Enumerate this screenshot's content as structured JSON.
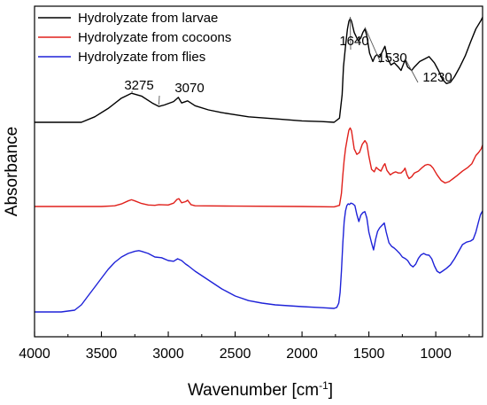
{
  "chart_data": {
    "type": "line",
    "xlabel": "Wavenumber [cm",
    "xlabel_sup": "-1",
    "xlabel_suffix": "]",
    "ylabel": "Absorbance",
    "xlim": [
      4000,
      650
    ],
    "x_reversed": true,
    "ylim": [
      0,
      1
    ],
    "y_tick_labels": false,
    "grid": false,
    "legend": "top-left",
    "xticks": [
      4000,
      3500,
      3000,
      2500,
      2000,
      1500,
      1000
    ],
    "xtick_labels": [
      "4000",
      "3500",
      "3000",
      "2500",
      "2000",
      "1500",
      "1000"
    ],
    "series": [
      {
        "name": "Hydrolyzate from larvae",
        "color": "#000000",
        "points": [
          [
            4000,
            0.72
          ],
          [
            3800,
            0.72
          ],
          [
            3650,
            0.72
          ],
          [
            3550,
            0.728
          ],
          [
            3450,
            0.74
          ],
          [
            3350,
            0.755
          ],
          [
            3275,
            0.762
          ],
          [
            3200,
            0.758
          ],
          [
            3120,
            0.748
          ],
          [
            3070,
            0.743
          ],
          [
            3030,
            0.745
          ],
          [
            2960,
            0.75
          ],
          [
            2925,
            0.756
          ],
          [
            2900,
            0.748
          ],
          [
            2855,
            0.751
          ],
          [
            2800,
            0.744
          ],
          [
            2700,
            0.738
          ],
          [
            2600,
            0.734
          ],
          [
            2400,
            0.728
          ],
          [
            2200,
            0.725
          ],
          [
            2000,
            0.722
          ],
          [
            1850,
            0.721
          ],
          [
            1760,
            0.72
          ],
          [
            1720,
            0.726
          ],
          [
            1700,
            0.76
          ],
          [
            1690,
            0.8
          ],
          [
            1675,
            0.83
          ],
          [
            1660,
            0.855
          ],
          [
            1650,
            0.866
          ],
          [
            1640,
            0.87
          ],
          [
            1630,
            0.866
          ],
          [
            1610,
            0.85
          ],
          [
            1580,
            0.838
          ],
          [
            1560,
            0.842
          ],
          [
            1545,
            0.85
          ],
          [
            1530,
            0.855
          ],
          [
            1515,
            0.845
          ],
          [
            1495,
            0.82
          ],
          [
            1470,
            0.808
          ],
          [
            1455,
            0.815
          ],
          [
            1440,
            0.818
          ],
          [
            1420,
            0.814
          ],
          [
            1400,
            0.822
          ],
          [
            1380,
            0.83
          ],
          [
            1360,
            0.812
          ],
          [
            1335,
            0.803
          ],
          [
            1310,
            0.806
          ],
          [
            1280,
            0.8
          ],
          [
            1260,
            0.795
          ],
          [
            1240,
            0.805
          ],
          [
            1230,
            0.81
          ],
          [
            1210,
            0.8
          ],
          [
            1180,
            0.795
          ],
          [
            1160,
            0.8
          ],
          [
            1120,
            0.808
          ],
          [
            1080,
            0.812
          ],
          [
            1050,
            0.815
          ],
          [
            1010,
            0.806
          ],
          [
            980,
            0.795
          ],
          [
            950,
            0.782
          ],
          [
            920,
            0.776
          ],
          [
            890,
            0.778
          ],
          [
            860,
            0.786
          ],
          [
            820,
            0.8
          ],
          [
            780,
            0.816
          ],
          [
            740,
            0.836
          ],
          [
            700,
            0.855
          ],
          [
            660,
            0.868
          ],
          [
            650,
            0.872
          ]
        ]
      },
      {
        "name": "Hydrolyzate from cocoons",
        "color": "#e0201b",
        "points": [
          [
            4000,
            0.445
          ],
          [
            3800,
            0.445
          ],
          [
            3500,
            0.445
          ],
          [
            3400,
            0.447
          ],
          [
            3350,
            0.452
          ],
          [
            3300,
            0.46
          ],
          [
            3275,
            0.463
          ],
          [
            3250,
            0.46
          ],
          [
            3200,
            0.453
          ],
          [
            3150,
            0.449
          ],
          [
            3100,
            0.448
          ],
          [
            3070,
            0.45
          ],
          [
            3000,
            0.449
          ],
          [
            2960,
            0.454
          ],
          [
            2935,
            0.464
          ],
          [
            2920,
            0.466
          ],
          [
            2900,
            0.455
          ],
          [
            2870,
            0.458
          ],
          [
            2855,
            0.462
          ],
          [
            2830,
            0.45
          ],
          [
            2800,
            0.447
          ],
          [
            2500,
            0.446
          ],
          [
            2000,
            0.445
          ],
          [
            1760,
            0.444
          ],
          [
            1720,
            0.448
          ],
          [
            1705,
            0.48
          ],
          [
            1695,
            0.53
          ],
          [
            1685,
            0.57
          ],
          [
            1675,
            0.6
          ],
          [
            1660,
            0.63
          ],
          [
            1650,
            0.65
          ],
          [
            1640,
            0.656
          ],
          [
            1630,
            0.648
          ],
          [
            1610,
            0.6
          ],
          [
            1590,
            0.585
          ],
          [
            1570,
            0.59
          ],
          [
            1550,
            0.612
          ],
          [
            1530,
            0.622
          ],
          [
            1515,
            0.614
          ],
          [
            1500,
            0.58
          ],
          [
            1480,
            0.545
          ],
          [
            1460,
            0.538
          ],
          [
            1445,
            0.55
          ],
          [
            1430,
            0.545
          ],
          [
            1410,
            0.54
          ],
          [
            1390,
            0.555
          ],
          [
            1380,
            0.56
          ],
          [
            1365,
            0.542
          ],
          [
            1340,
            0.53
          ],
          [
            1320,
            0.535
          ],
          [
            1300,
            0.538
          ],
          [
            1280,
            0.535
          ],
          [
            1260,
            0.535
          ],
          [
            1240,
            0.542
          ],
          [
            1230,
            0.548
          ],
          [
            1215,
            0.53
          ],
          [
            1200,
            0.52
          ],
          [
            1180,
            0.525
          ],
          [
            1160,
            0.535
          ],
          [
            1130,
            0.54
          ],
          [
            1100,
            0.55
          ],
          [
            1080,
            0.556
          ],
          [
            1060,
            0.558
          ],
          [
            1040,
            0.556
          ],
          [
            1020,
            0.548
          ],
          [
            990,
            0.53
          ],
          [
            960,
            0.515
          ],
          [
            930,
            0.508
          ],
          [
            900,
            0.512
          ],
          [
            870,
            0.52
          ],
          [
            840,
            0.528
          ],
          [
            800,
            0.54
          ],
          [
            760,
            0.55
          ],
          [
            730,
            0.56
          ],
          [
            700,
            0.582
          ],
          [
            680,
            0.59
          ],
          [
            660,
            0.6
          ],
          [
            650,
            0.61
          ]
        ]
      },
      {
        "name": "Hydrolyzate from flies",
        "color": "#1e22d8",
        "points": [
          [
            4000,
            0.045
          ],
          [
            3800,
            0.045
          ],
          [
            3700,
            0.05
          ],
          [
            3650,
            0.065
          ],
          [
            3600,
            0.09
          ],
          [
            3550,
            0.115
          ],
          [
            3500,
            0.14
          ],
          [
            3450,
            0.165
          ],
          [
            3400,
            0.185
          ],
          [
            3350,
            0.2
          ],
          [
            3300,
            0.21
          ],
          [
            3250,
            0.216
          ],
          [
            3220,
            0.218
          ],
          [
            3200,
            0.216
          ],
          [
            3150,
            0.21
          ],
          [
            3100,
            0.2
          ],
          [
            3050,
            0.198
          ],
          [
            3000,
            0.19
          ],
          [
            2960,
            0.188
          ],
          [
            2930,
            0.195
          ],
          [
            2900,
            0.19
          ],
          [
            2870,
            0.18
          ],
          [
            2850,
            0.175
          ],
          [
            2800,
            0.16
          ],
          [
            2700,
            0.135
          ],
          [
            2600,
            0.11
          ],
          [
            2500,
            0.09
          ],
          [
            2400,
            0.077
          ],
          [
            2300,
            0.07
          ],
          [
            2200,
            0.065
          ],
          [
            2000,
            0.06
          ],
          [
            1850,
            0.057
          ],
          [
            1760,
            0.055
          ],
          [
            1740,
            0.058
          ],
          [
            1725,
            0.07
          ],
          [
            1715,
            0.1
          ],
          [
            1705,
            0.16
          ],
          [
            1695,
            0.24
          ],
          [
            1685,
            0.3
          ],
          [
            1675,
            0.33
          ],
          [
            1665,
            0.345
          ],
          [
            1655,
            0.35
          ],
          [
            1645,
            0.348
          ],
          [
            1635,
            0.352
          ],
          [
            1620,
            0.35
          ],
          [
            1605,
            0.345
          ],
          [
            1590,
            0.32
          ],
          [
            1575,
            0.3
          ],
          [
            1560,
            0.318
          ],
          [
            1545,
            0.325
          ],
          [
            1530,
            0.328
          ],
          [
            1515,
            0.31
          ],
          [
            1500,
            0.27
          ],
          [
            1480,
            0.24
          ],
          [
            1465,
            0.22
          ],
          [
            1450,
            0.25
          ],
          [
            1435,
            0.272
          ],
          [
            1420,
            0.282
          ],
          [
            1400,
            0.29
          ],
          [
            1385,
            0.296
          ],
          [
            1370,
            0.27
          ],
          [
            1350,
            0.24
          ],
          [
            1330,
            0.23
          ],
          [
            1310,
            0.225
          ],
          [
            1290,
            0.218
          ],
          [
            1270,
            0.21
          ],
          [
            1250,
            0.2
          ],
          [
            1230,
            0.196
          ],
          [
            1210,
            0.19
          ],
          [
            1190,
            0.178
          ],
          [
            1170,
            0.172
          ],
          [
            1150,
            0.18
          ],
          [
            1130,
            0.196
          ],
          [
            1110,
            0.206
          ],
          [
            1090,
            0.21
          ],
          [
            1070,
            0.206
          ],
          [
            1050,
            0.205
          ],
          [
            1030,
            0.195
          ],
          [
            1010,
            0.175
          ],
          [
            990,
            0.16
          ],
          [
            970,
            0.155
          ],
          [
            950,
            0.16
          ],
          [
            920,
            0.168
          ],
          [
            890,
            0.178
          ],
          [
            860,
            0.195
          ],
          [
            830,
            0.215
          ],
          [
            800,
            0.235
          ],
          [
            770,
            0.242
          ],
          [
            740,
            0.245
          ],
          [
            720,
            0.25
          ],
          [
            700,
            0.27
          ],
          [
            680,
            0.3
          ],
          [
            665,
            0.32
          ],
          [
            650,
            0.33
          ]
        ]
      }
    ],
    "annotations": [
      {
        "label": "3275",
        "x": 3275,
        "series": 0
      },
      {
        "label": "3070",
        "x": 3070,
        "series": 0
      },
      {
        "label": "1640",
        "x": 1640,
        "series": 0
      },
      {
        "label": "1530",
        "x": 1530,
        "series": 0
      },
      {
        "label": "1230",
        "x": 1230,
        "series": 0
      }
    ]
  }
}
